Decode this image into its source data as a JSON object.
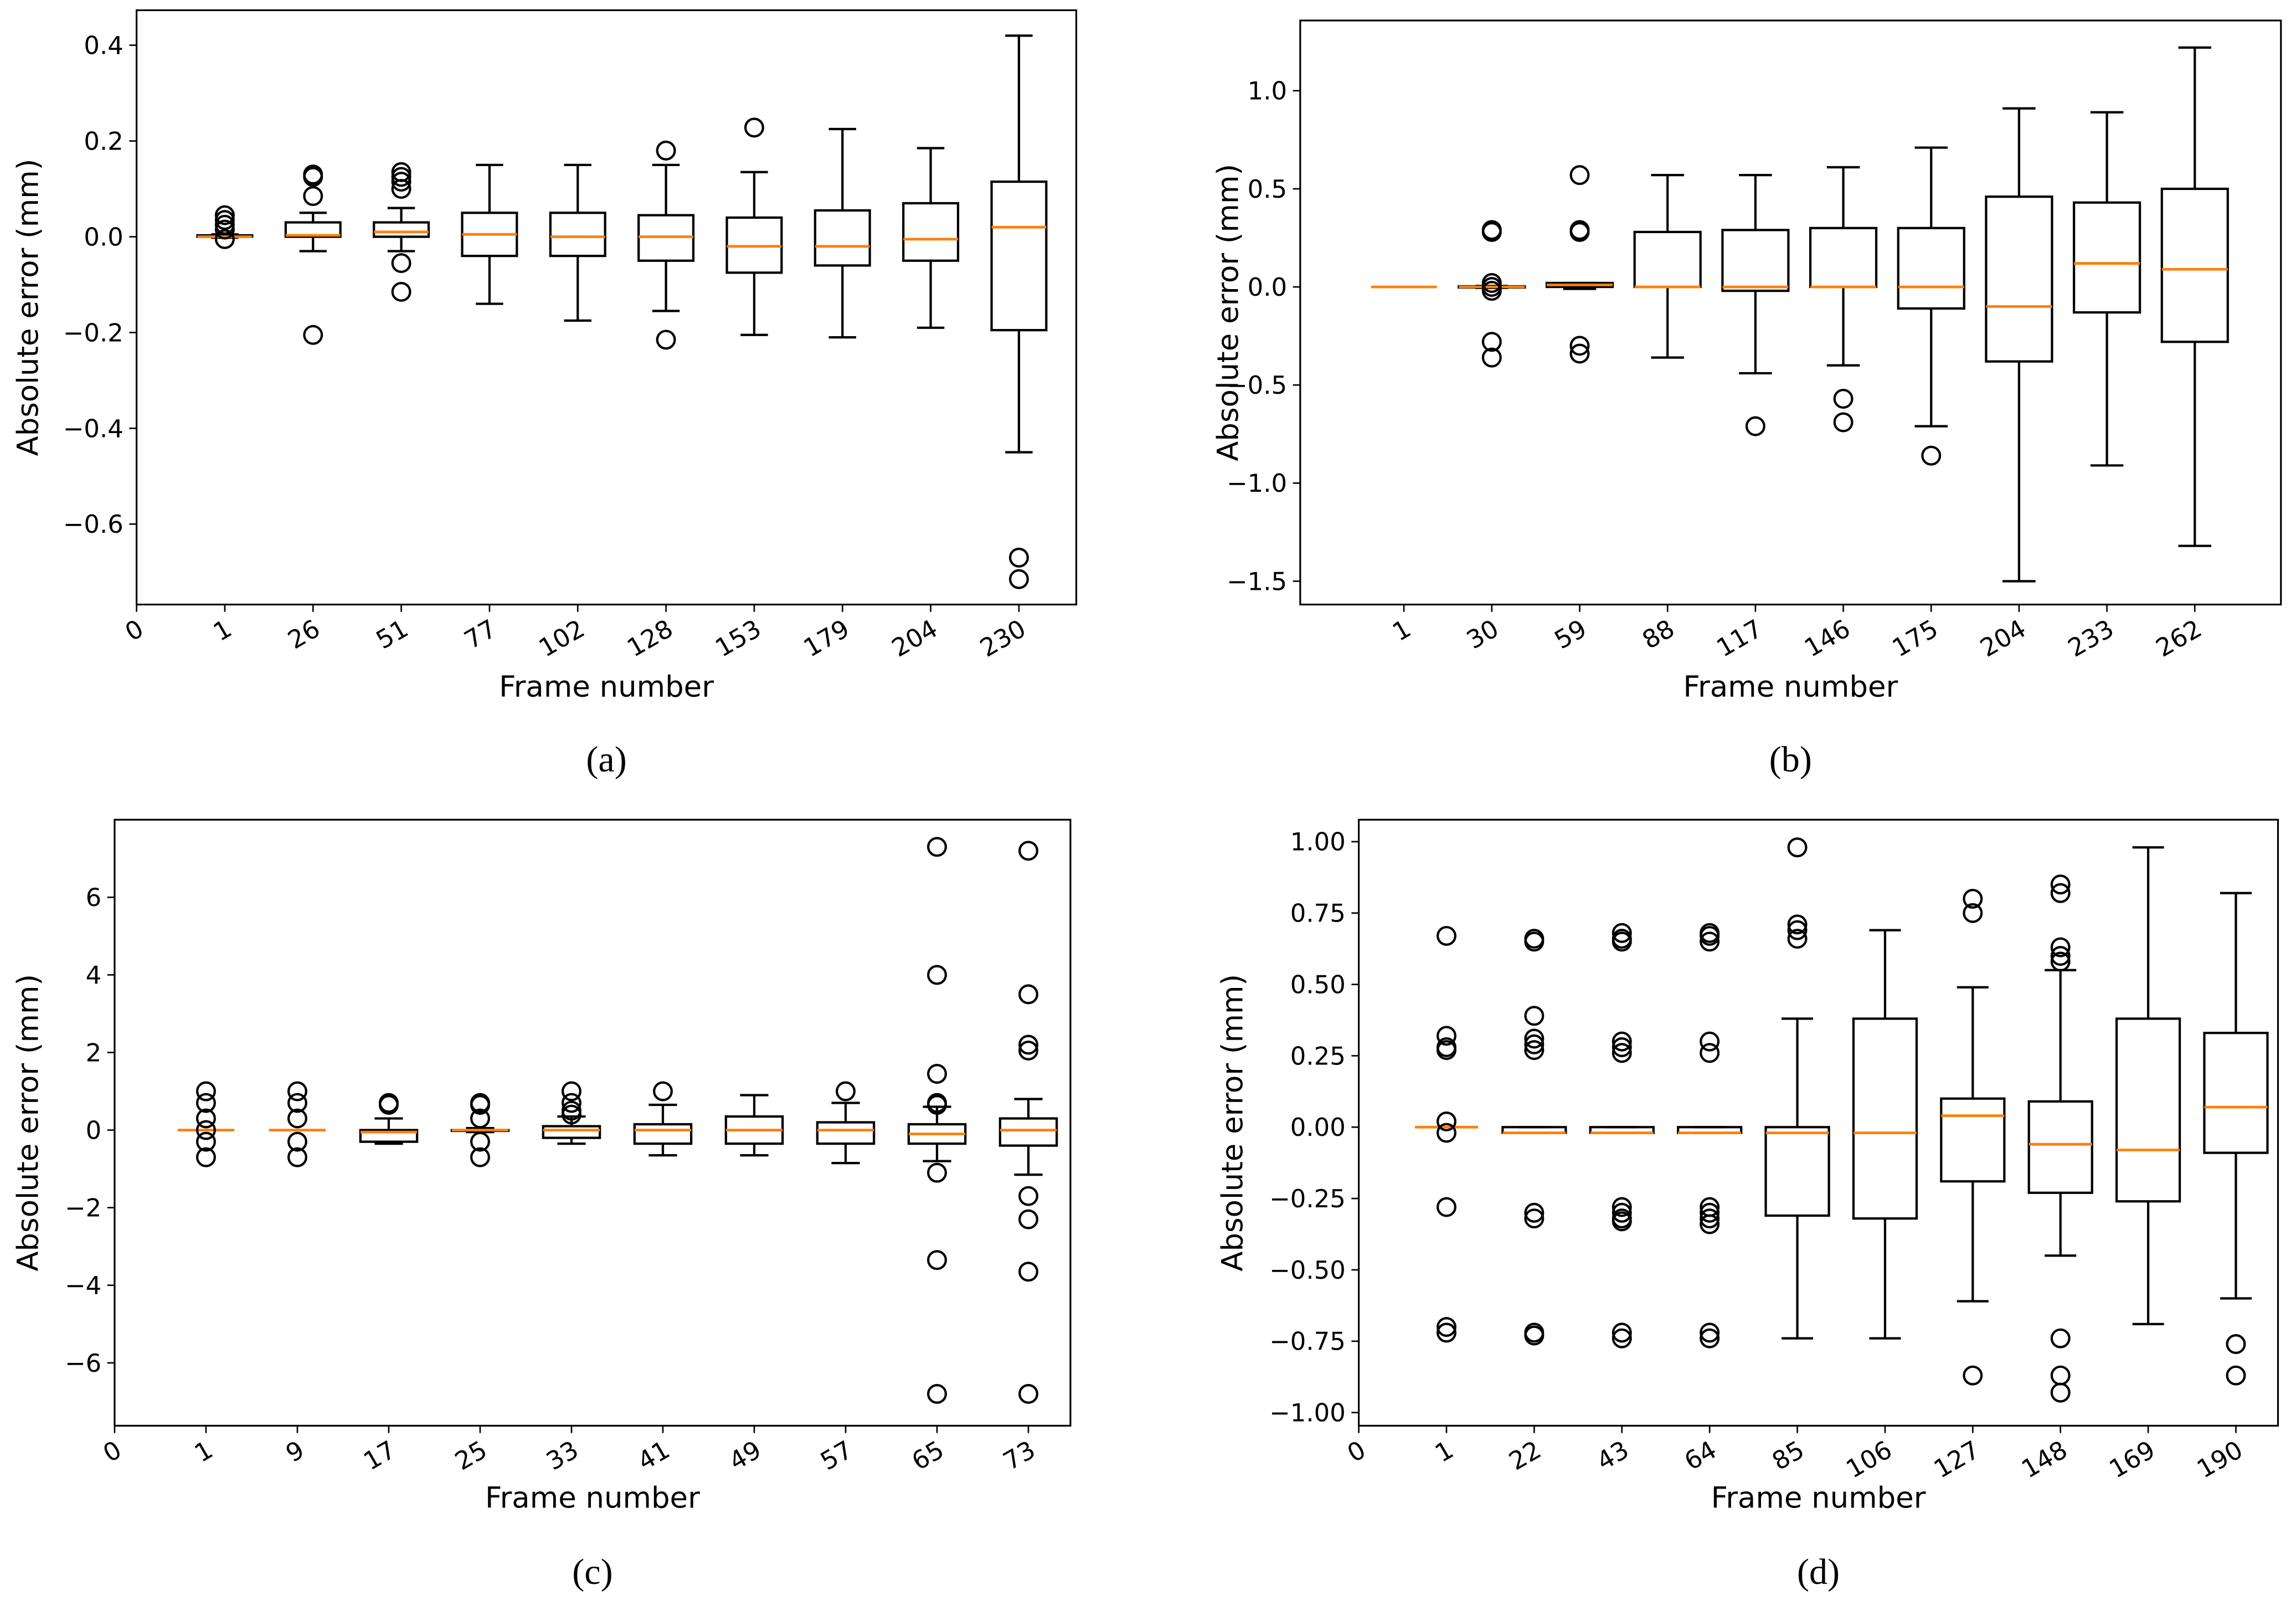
{
  "chart_data": [
    {
      "type": "box",
      "caption": "(a)",
      "xlabel": "Frame number",
      "ylabel": "Absolute error (mm)",
      "box_color": "#000000",
      "median_color": "#ff7f0e",
      "categories": [
        "0",
        "1",
        "26",
        "51",
        "77",
        "102",
        "128",
        "153",
        "179",
        "204",
        "230"
      ],
      "xlim": [
        0,
        10.65
      ],
      "ylim": [
        -0.768,
        0.473
      ],
      "yticks": [
        0.4,
        0.2,
        {
          "value": 0,
          "label": "0.0"
        },
        {
          "value": -0.2,
          "label": "−0.2"
        },
        {
          "value": -0.4,
          "label": "−0.4"
        },
        {
          "value": -0.6,
          "label": "−0.6"
        }
      ],
      "boxes": [
        null,
        {
          "min": -0.002,
          "q1": 0,
          "median": 0,
          "q3": 0.003,
          "max": 0.005,
          "outliers": [
            0.045,
            0.035,
            0.025,
            0.015,
            -0.005
          ]
        },
        {
          "min": -0.03,
          "q1": 0,
          "median": 0.003,
          "q3": 0.03,
          "max": 0.05,
          "outliers": [
            0.13,
            0.125,
            0.085,
            -0.205
          ]
        },
        {
          "min": -0.03,
          "q1": 0,
          "median": 0.01,
          "q3": 0.03,
          "max": 0.06,
          "outliers": [
            0.135,
            0.125,
            0.115,
            0.1,
            -0.055,
            -0.115
          ]
        },
        {
          "min": -0.14,
          "q1": -0.04,
          "median": 0.005,
          "q3": 0.05,
          "max": 0.15,
          "outliers": []
        },
        {
          "min": -0.175,
          "q1": -0.04,
          "median": 0,
          "q3": 0.05,
          "max": 0.15,
          "outliers": []
        },
        {
          "min": -0.155,
          "q1": -0.05,
          "median": 0,
          "q3": 0.045,
          "max": 0.15,
          "outliers": [
            0.18,
            -0.215
          ]
        },
        {
          "min": -0.205,
          "q1": -0.075,
          "median": -0.02,
          "q3": 0.04,
          "max": 0.135,
          "outliers": [
            0.228
          ]
        },
        {
          "min": -0.21,
          "q1": -0.06,
          "median": -0.02,
          "q3": 0.055,
          "max": 0.225,
          "outliers": []
        },
        {
          "min": -0.19,
          "q1": -0.05,
          "median": -0.005,
          "q3": 0.07,
          "max": 0.185,
          "outliers": []
        },
        {
          "min": -0.45,
          "q1": -0.195,
          "median": 0.02,
          "q3": 0.115,
          "max": 0.42,
          "outliers": [
            -0.67,
            -0.715
          ]
        }
      ]
    },
    {
      "type": "box",
      "caption": "(b)",
      "xlabel": "Frame number",
      "ylabel": "Absolute error (mm)",
      "box_color": "#000000",
      "median_color": "#ff7f0e",
      "categories": [
        "1",
        "30",
        "59",
        "88",
        "117",
        "146",
        "175",
        "204",
        "233",
        "262"
      ],
      "xlim": [
        -1.18,
        9.98
      ],
      "ylim": [
        -1.619,
        1.358
      ],
      "yticks": [
        {
          "value": 1,
          "label": "1.0"
        },
        0.5,
        {
          "value": 0,
          "label": "0.0"
        },
        {
          "value": -0.5,
          "label": "−0.5"
        },
        {
          "value": -1,
          "label": "−1.0"
        },
        {
          "value": -1.5,
          "label": "−1.5"
        }
      ],
      "boxes": [
        {
          "min": 0,
          "q1": 0,
          "median": 0,
          "q3": 0,
          "max": 0,
          "outliers": []
        },
        {
          "min": -0.005,
          "q1": -0.003,
          "median": 0,
          "q3": 0.003,
          "max": 0.005,
          "outliers": [
            0.29,
            0.28,
            0.02,
            0,
            -0.02,
            -0.28,
            -0.36
          ]
        },
        {
          "min": -0.01,
          "q1": 0,
          "median": 0.01,
          "q3": 0.02,
          "max": 0.02,
          "outliers": [
            0.57,
            0.29,
            0.28,
            -0.3,
            -0.34
          ]
        },
        {
          "min": -0.36,
          "q1": 0,
          "median": 0,
          "q3": 0.28,
          "max": 0.57,
          "outliers": []
        },
        {
          "min": -0.44,
          "q1": -0.02,
          "median": 0,
          "q3": 0.29,
          "max": 0.57,
          "outliers": [
            -0.71
          ]
        },
        {
          "min": -0.4,
          "q1": 0,
          "median": 0,
          "q3": 0.3,
          "max": 0.61,
          "outliers": [
            -0.57,
            -0.69
          ]
        },
        {
          "min": -0.71,
          "q1": -0.11,
          "median": 0,
          "q3": 0.3,
          "max": 0.71,
          "outliers": [
            -0.86
          ]
        },
        {
          "min": -1.5,
          "q1": -0.38,
          "median": -0.1,
          "q3": 0.46,
          "max": 0.91,
          "outliers": []
        },
        {
          "min": -0.91,
          "q1": -0.13,
          "median": 0.12,
          "q3": 0.43,
          "max": 0.89,
          "outliers": []
        },
        {
          "min": -1.32,
          "q1": -0.28,
          "median": 0.09,
          "q3": 0.5,
          "max": 1.22,
          "outliers": []
        }
      ]
    },
    {
      "type": "box",
      "caption": "(c)",
      "xlabel": "Frame number",
      "ylabel": "Absolute error (mm)",
      "box_color": "#000000",
      "median_color": "#ff7f0e",
      "categories": [
        "0",
        "1",
        "9",
        "17",
        "25",
        "33",
        "41",
        "49",
        "57",
        "65",
        "73"
      ],
      "xlim": [
        0,
        10.46
      ],
      "ylim": [
        -7.62,
        8.0
      ],
      "yticks": [
        6,
        4,
        2,
        0,
        {
          "value": -2,
          "label": "−2"
        },
        {
          "value": -4,
          "label": "−4"
        },
        {
          "value": -6,
          "label": "−6"
        }
      ],
      "boxes": [
        null,
        {
          "min": 0,
          "q1": 0,
          "median": 0,
          "q3": 0,
          "max": 0,
          "outliers": [
            1.0,
            0.7,
            0.3,
            0,
            -0.3,
            -0.7
          ]
        },
        {
          "min": 0,
          "q1": 0,
          "median": 0,
          "q3": 0,
          "max": 0,
          "outliers": [
            1.0,
            0.7,
            0.3,
            -0.3,
            -0.7
          ]
        },
        {
          "min": -0.35,
          "q1": -0.3,
          "median": -0.05,
          "q3": 0,
          "max": 0.3,
          "outliers": [
            0.7,
            0.65
          ]
        },
        {
          "min": -0.05,
          "q1": -0.02,
          "median": 0,
          "q3": 0,
          "max": 0.05,
          "outliers": [
            0.7,
            0.65,
            0.3,
            -0.3,
            -0.7
          ]
        },
        {
          "min": -0.35,
          "q1": -0.2,
          "median": 0,
          "q3": 0.1,
          "max": 0.35,
          "outliers": [
            1.0,
            0.7,
            0.5,
            0.4
          ]
        },
        {
          "min": -0.65,
          "q1": -0.35,
          "median": 0,
          "q3": 0.15,
          "max": 0.65,
          "outliers": [
            1.0
          ]
        },
        {
          "min": -0.65,
          "q1": -0.35,
          "median": 0,
          "q3": 0.35,
          "max": 0.9,
          "outliers": []
        },
        {
          "min": -0.85,
          "q1": -0.35,
          "median": 0,
          "q3": 0.2,
          "max": 0.7,
          "outliers": [
            1.0
          ]
        },
        {
          "min": -0.8,
          "q1": -0.35,
          "median": -0.1,
          "q3": 0.15,
          "max": 0.6,
          "outliers": [
            7.3,
            4.0,
            1.45,
            0.7,
            0.65,
            -1.1,
            -3.35,
            -6.8
          ]
        },
        {
          "min": -1.15,
          "q1": -0.4,
          "median": 0,
          "q3": 0.3,
          "max": 0.8,
          "outliers": [
            7.2,
            3.5,
            2.2,
            2.05,
            -1.7,
            -2.3,
            -3.65,
            -6.8
          ]
        }
      ]
    },
    {
      "type": "box",
      "caption": "(d)",
      "xlabel": "Frame number",
      "ylabel": "Absolute error (mm)",
      "box_color": "#000000",
      "median_color": "#ff7f0e",
      "categories": [
        "0",
        "1",
        "22",
        "43",
        "64",
        "85",
        "106",
        "127",
        "148",
        "169",
        "190"
      ],
      "xlim": [
        0,
        10.48
      ],
      "ylim": [
        -1.046,
        1.077
      ],
      "yticks": [
        {
          "value": 1,
          "label": "1.00"
        },
        {
          "value": 0.75,
          "label": "0.75"
        },
        {
          "value": 0.5,
          "label": "0.50"
        },
        {
          "value": 0.25,
          "label": "0.25"
        },
        {
          "value": 0,
          "label": "0.00"
        },
        {
          "value": -0.25,
          "label": "−0.25"
        },
        {
          "value": -0.5,
          "label": "−0.50"
        },
        {
          "value": -0.75,
          "label": "−0.75"
        },
        {
          "value": -1,
          "label": "−1.00"
        }
      ],
      "boxes": [
        null,
        {
          "min": 0,
          "q1": 0,
          "median": 0,
          "q3": 0,
          "max": 0,
          "outliers": [
            0.67,
            0.32,
            0.28,
            0.27,
            0.02,
            -0.02,
            -0.28,
            -0.7,
            -0.72
          ]
        },
        {
          "min": -0.02,
          "q1": -0.02,
          "median": -0.02,
          "q3": 0,
          "max": 0,
          "outliers": [
            0.66,
            0.65,
            0.39,
            0.31,
            0.29,
            0.27,
            -0.3,
            -0.32,
            -0.72,
            -0.73
          ]
        },
        {
          "min": -0.02,
          "q1": -0.02,
          "median": -0.02,
          "q3": 0,
          "max": 0,
          "outliers": [
            0.68,
            0.66,
            0.65,
            0.3,
            0.28,
            0.26,
            -0.28,
            -0.3,
            -0.32,
            -0.33,
            -0.72,
            -0.74
          ]
        },
        {
          "min": -0.02,
          "q1": -0.02,
          "median": -0.02,
          "q3": 0,
          "max": 0,
          "outliers": [
            0.68,
            0.67,
            0.65,
            0.3,
            0.26,
            -0.28,
            -0.3,
            -0.32,
            -0.34,
            -0.72,
            -0.74
          ]
        },
        {
          "min": -0.74,
          "q1": -0.31,
          "median": -0.02,
          "q3": 0,
          "max": 0.38,
          "outliers": [
            0.98,
            0.71,
            0.69,
            0.66
          ]
        },
        {
          "min": -0.74,
          "q1": -0.32,
          "median": -0.02,
          "q3": 0.38,
          "max": 0.69,
          "outliers": []
        },
        {
          "min": -0.61,
          "q1": -0.19,
          "median": 0.04,
          "q3": 0.1,
          "max": 0.49,
          "outliers": [
            0.8,
            0.75,
            -0.87
          ]
        },
        {
          "min": -0.45,
          "q1": -0.23,
          "median": -0.06,
          "q3": 0.09,
          "max": 0.55,
          "outliers": [
            0.85,
            0.82,
            0.63,
            0.6,
            0.58,
            -0.74,
            -0.87,
            -0.93
          ]
        },
        {
          "min": -0.69,
          "q1": -0.26,
          "median": -0.08,
          "q3": 0.38,
          "max": 0.98,
          "outliers": []
        },
        {
          "min": -0.6,
          "q1": -0.09,
          "median": 0.07,
          "q3": 0.33,
          "max": 0.82,
          "outliers": [
            -0.76,
            -0.87
          ]
        }
      ]
    }
  ]
}
